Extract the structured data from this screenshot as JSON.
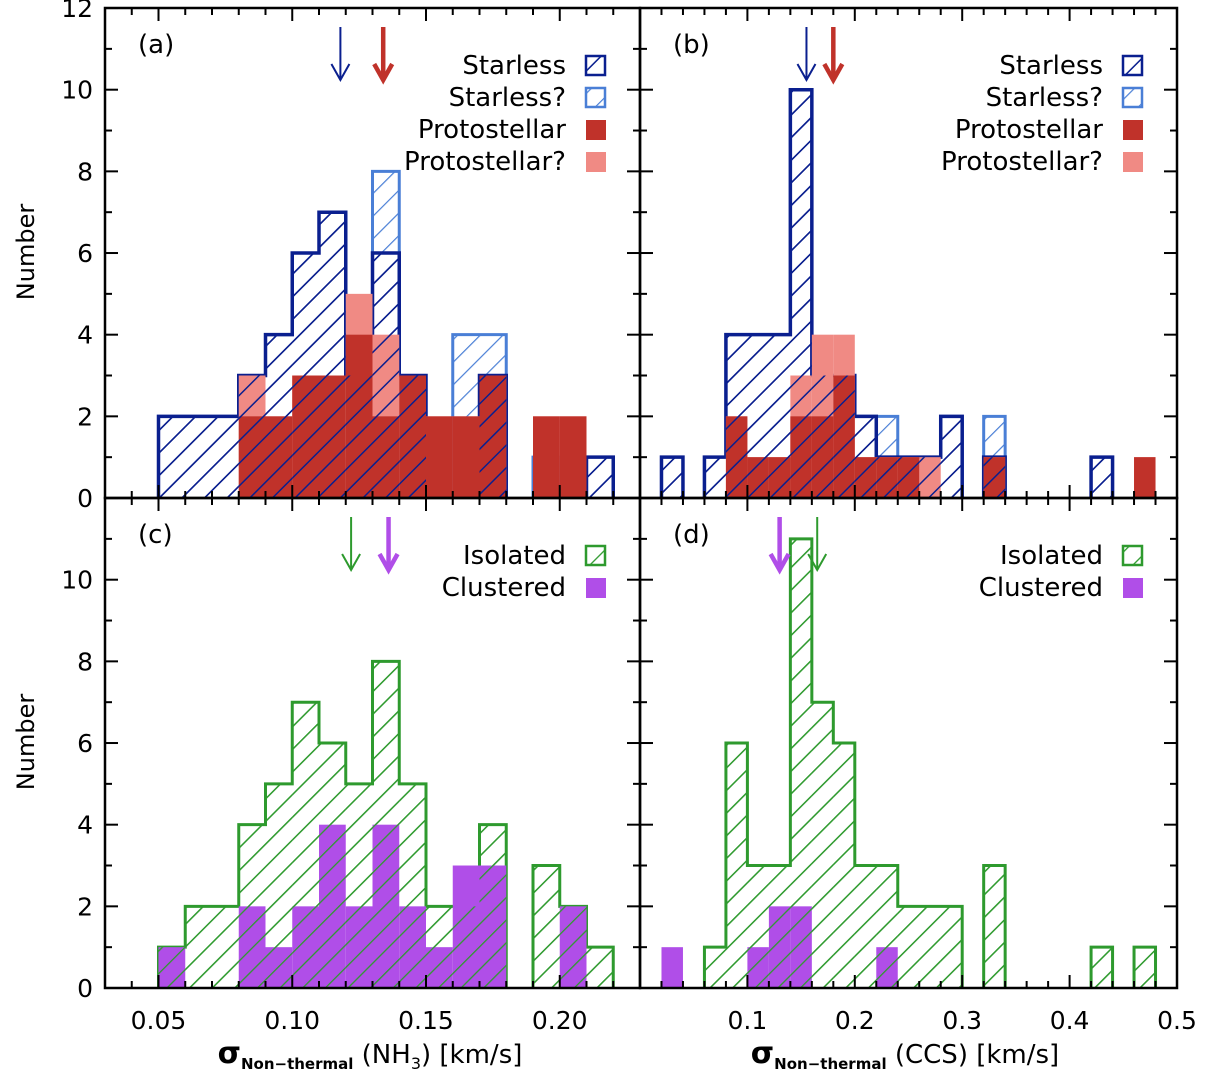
{
  "figure": {
    "xlabels": {
      "left": {
        "sigma": "σ",
        "sub": "Non−thermal",
        "rest": " (NH",
        "sub3": "3",
        "tail": ") [km/s]"
      },
      "right": {
        "sigma": "σ",
        "sub": "Non−thermal",
        "rest": " (CCS) [km/s]"
      }
    },
    "ylabel": "Number"
  },
  "colors": {
    "starless": "#0a1f8f",
    "starless_q": "#4a7fd6",
    "protostellar": "#c0322a",
    "protostellar_q": "#f08a84",
    "isolated": "#2e9a2e",
    "clustered": "#b04ee8"
  },
  "chart_data": [
    {
      "type": "bar",
      "panel": "(a)",
      "xlim": [
        0.03,
        0.23
      ],
      "ylim": [
        0,
        12
      ],
      "bin_width": 0.01,
      "bin_starts": [
        0.05,
        0.06,
        0.07,
        0.08,
        0.09,
        0.1,
        0.11,
        0.12,
        0.13,
        0.14,
        0.15,
        0.16,
        0.17,
        0.18,
        0.19,
        0.2,
        0.21
      ],
      "series": [
        {
          "name": "Starless",
          "values": [
            2,
            2,
            2,
            3,
            4,
            6,
            7,
            3,
            6,
            3,
            0,
            0,
            3,
            0,
            0,
            0,
            1
          ]
        },
        {
          "name": "Starless?",
          "values": [
            2,
            2,
            2,
            3,
            4,
            6,
            7,
            3,
            8,
            3,
            0,
            4,
            4,
            0,
            1,
            0,
            1
          ]
        },
        {
          "name": "Protostellar",
          "values": [
            0,
            0,
            0,
            2,
            2,
            3,
            3,
            4,
            2,
            3,
            2,
            2,
            3,
            0,
            2,
            2,
            0
          ]
        },
        {
          "name": "Protostellar?",
          "values": [
            0,
            0,
            0,
            3,
            2,
            3,
            1,
            5,
            4,
            3,
            2,
            2,
            3,
            0,
            2,
            2,
            0
          ]
        }
      ],
      "arrows": [
        {
          "series": "Starless",
          "x": 0.118
        },
        {
          "series": "Protostellar",
          "x": 0.134
        }
      ],
      "legend": [
        "Starless",
        "Starless?",
        "Protostellar",
        "Protostellar?"
      ],
      "legend_position": "top-right"
    },
    {
      "type": "bar",
      "panel": "(b)",
      "xlim": [
        0.0,
        0.5
      ],
      "ylim": [
        0,
        12
      ],
      "bin_width": 0.02,
      "bin_starts": [
        0.02,
        0.04,
        0.06,
        0.08,
        0.1,
        0.12,
        0.14,
        0.16,
        0.18,
        0.2,
        0.22,
        0.24,
        0.26,
        0.28,
        0.3,
        0.32,
        0.34,
        0.36,
        0.38,
        0.4,
        0.42,
        0.44,
        0.46
      ],
      "series": [
        {
          "name": "Starless",
          "values": [
            1,
            0,
            1,
            4,
            4,
            4,
            10,
            3,
            3,
            2,
            1,
            1,
            1,
            2,
            0,
            1,
            0,
            0,
            0,
            0,
            1,
            0,
            0
          ]
        },
        {
          "name": "Starless?",
          "values": [
            1,
            0,
            1,
            4,
            4,
            4,
            10,
            3,
            3,
            2,
            2,
            1,
            1,
            2,
            0,
            2,
            0,
            0,
            0,
            0,
            1,
            0,
            0
          ]
        },
        {
          "name": "Protostellar",
          "values": [
            0,
            0,
            0,
            2,
            1,
            1,
            2,
            2,
            3,
            1,
            1,
            1,
            0,
            0,
            0,
            1,
            0,
            0,
            0,
            0,
            0,
            0,
            1
          ]
        },
        {
          "name": "Protostellar?",
          "values": [
            0,
            0,
            0,
            2,
            1,
            1,
            3,
            4,
            4,
            1,
            1,
            1,
            1,
            0,
            0,
            1,
            0,
            0,
            0,
            0,
            0,
            0,
            1
          ]
        }
      ],
      "arrows": [
        {
          "series": "Starless",
          "x": 0.155
        },
        {
          "series": "Protostellar",
          "x": 0.18
        }
      ],
      "legend": [
        "Starless",
        "Starless?",
        "Protostellar",
        "Protostellar?"
      ],
      "legend_position": "top-right"
    },
    {
      "type": "bar",
      "panel": "(c)",
      "xlim": [
        0.03,
        0.23
      ],
      "ylim": [
        0,
        12
      ],
      "xticks": [
        "0.05",
        "0.10",
        "0.15",
        "0.20"
      ],
      "bin_width": 0.01,
      "bin_starts": [
        0.05,
        0.06,
        0.07,
        0.08,
        0.09,
        0.1,
        0.11,
        0.12,
        0.13,
        0.14,
        0.15,
        0.16,
        0.17,
        0.18,
        0.19,
        0.2,
        0.21
      ],
      "series": [
        {
          "name": "Isolated",
          "values": [
            1,
            2,
            2,
            4,
            5,
            7,
            6,
            5,
            8,
            5,
            2,
            2,
            4,
            0,
            3,
            2,
            1
          ]
        },
        {
          "name": "Clustered",
          "values": [
            1,
            0,
            0,
            2,
            1,
            2,
            4,
            2,
            4,
            2,
            1,
            3,
            3,
            0,
            0,
            2,
            0
          ]
        }
      ],
      "arrows": [
        {
          "series": "Isolated",
          "x": 0.122
        },
        {
          "series": "Clustered",
          "x": 0.136
        }
      ],
      "legend": [
        "Isolated",
        "Clustered"
      ],
      "legend_position": "top-right"
    },
    {
      "type": "bar",
      "panel": "(d)",
      "xlim": [
        0.0,
        0.5
      ],
      "ylim": [
        0,
        12
      ],
      "xticks": [
        "0.1",
        "0.2",
        "0.3",
        "0.4",
        "0.5"
      ],
      "bin_width": 0.02,
      "bin_starts": [
        0.02,
        0.04,
        0.06,
        0.08,
        0.1,
        0.12,
        0.14,
        0.16,
        0.18,
        0.2,
        0.22,
        0.24,
        0.26,
        0.28,
        0.3,
        0.32,
        0.34,
        0.36,
        0.38,
        0.4,
        0.42,
        0.44,
        0.46
      ],
      "series": [
        {
          "name": "Isolated",
          "values": [
            0,
            0,
            1,
            6,
            3,
            3,
            11,
            7,
            6,
            3,
            3,
            2,
            2,
            2,
            0,
            3,
            0,
            0,
            0,
            0,
            1,
            0,
            1
          ]
        },
        {
          "name": "Clustered",
          "values": [
            1,
            0,
            0,
            0,
            1,
            2,
            2,
            0,
            0,
            0,
            1,
            0,
            0,
            0,
            0,
            0,
            0,
            0,
            0,
            0,
            0,
            0,
            0
          ]
        }
      ],
      "arrows": [
        {
          "series": "Clustered",
          "x": 0.13
        },
        {
          "series": "Isolated",
          "x": 0.165
        }
      ],
      "legend": [
        "Isolated",
        "Clustered"
      ],
      "legend_position": "top-right"
    }
  ],
  "yticks": [
    "0",
    "2",
    "4",
    "6",
    "8",
    "10",
    "12"
  ]
}
